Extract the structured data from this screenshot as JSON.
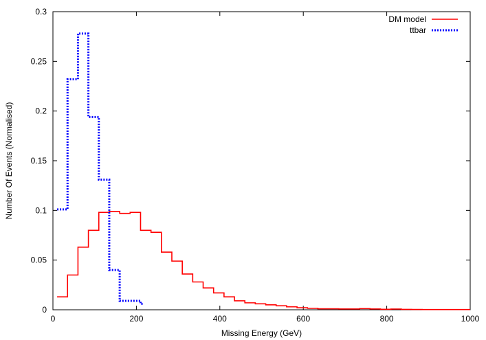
{
  "chart_data": {
    "type": "line",
    "title": "",
    "xlabel": "Missing Energy (GeV)",
    "ylabel": "Number Of Events (Normalised)",
    "xlim": [
      0,
      1000
    ],
    "ylim": [
      0,
      0.3
    ],
    "xticks": [
      0,
      200,
      400,
      600,
      800,
      1000
    ],
    "xtick_labels": [
      "0",
      "200",
      "400",
      "600",
      "800",
      "1000"
    ],
    "yticks": [
      0,
      0.05,
      0.1,
      0.15,
      0.2,
      0.25,
      0.3
    ],
    "ytick_labels": [
      "0",
      "0.05",
      "0.1",
      "0.15",
      "0.2",
      "0.25",
      "0.3"
    ],
    "grid": false,
    "legend_position": "top-right",
    "series": [
      {
        "name": "DM model",
        "style": "solid-step",
        "color": "#ff0000",
        "x": [
          10,
          35,
          60,
          85,
          110,
          135,
          160,
          185,
          210,
          235,
          260,
          285,
          310,
          335,
          360,
          385,
          410,
          435,
          460,
          485,
          510,
          535,
          560,
          585,
          610,
          635,
          660,
          685,
          710,
          735,
          760,
          785,
          810,
          835,
          860,
          885,
          910,
          935,
          960,
          985,
          1000
        ],
        "y": [
          0.013,
          0.035,
          0.063,
          0.08,
          0.098,
          0.099,
          0.097,
          0.098,
          0.08,
          0.078,
          0.058,
          0.049,
          0.036,
          0.028,
          0.022,
          0.017,
          0.013,
          0.009,
          0.007,
          0.006,
          0.005,
          0.004,
          0.003,
          0.002,
          0.0015,
          0.001,
          0.001,
          0.0008,
          0.0008,
          0.0012,
          0.0008,
          0.0005,
          0.0007,
          0.0004,
          0.0003,
          0.0002,
          0.0002,
          0.0002,
          0.0002,
          0.0002,
          0.0002
        ]
      },
      {
        "name": "ttbar",
        "style": "dotted-step",
        "color": "#0000ff",
        "x": [
          10,
          35,
          60,
          85,
          110,
          135,
          160,
          185,
          210,
          215
        ],
        "y": [
          0.101,
          0.232,
          0.278,
          0.194,
          0.131,
          0.04,
          0.009,
          0.009,
          0.006,
          0.006
        ]
      }
    ]
  }
}
